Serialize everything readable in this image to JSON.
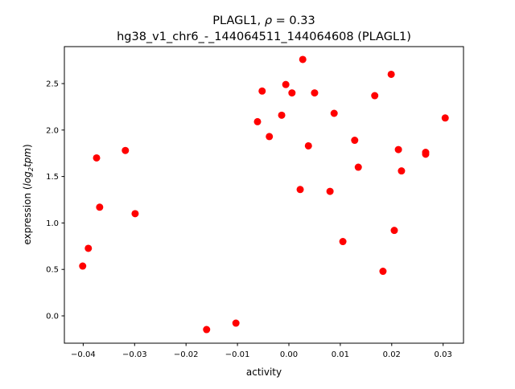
{
  "chart_data": {
    "type": "scatter",
    "title_line1_prefix": "PLAGL1, ",
    "title_line1_symbol": "ρ",
    "title_line1_suffix": " = 0.33",
    "title_line2": "hg38_v1_chr6_-_144064511_144064608 (PLAGL1)",
    "xlabel": "activity",
    "ylabel_prefix": "expression (",
    "ylabel_math": "log",
    "ylabel_sub": "2",
    "ylabel_math2": "tpm",
    "ylabel_suffix": ")",
    "xlim": [
      -0.04366,
      0.03396
    ],
    "ylim": [
      -0.294,
      2.898
    ],
    "xticks": [
      -0.04,
      -0.03,
      -0.02,
      -0.01,
      0.0,
      0.01,
      0.02,
      0.03
    ],
    "xtick_labels": [
      "−0.04",
      "−0.03",
      "−0.02",
      "−0.01",
      "0.00",
      "0.01",
      "0.02",
      "0.03"
    ],
    "yticks": [
      0.0,
      0.5,
      1.0,
      1.5,
      2.0,
      2.5
    ],
    "ytick_labels": [
      "0.0",
      "0.5",
      "1.0",
      "1.5",
      "2.0",
      "2.5"
    ],
    "grid": false,
    "marker_color": "#ff0000",
    "points": [
      [
        -0.0401,
        0.536
      ],
      [
        -0.039,
        0.727
      ],
      [
        -0.0374,
        1.7
      ],
      [
        -0.0368,
        1.17
      ],
      [
        -0.0318,
        1.78
      ],
      [
        -0.0299,
        1.1
      ],
      [
        -0.016,
        -0.147
      ],
      [
        -0.0103,
        -0.078
      ],
      [
        -0.0061,
        2.09
      ],
      [
        -0.0052,
        2.42
      ],
      [
        -0.0038,
        1.93
      ],
      [
        -0.0014,
        2.16
      ],
      [
        -0.0006,
        2.49
      ],
      [
        0.0006,
        2.4
      ],
      [
        0.0022,
        1.36
      ],
      [
        0.0027,
        2.76
      ],
      [
        0.0038,
        1.83
      ],
      [
        0.005,
        2.4
      ],
      [
        0.008,
        1.34
      ],
      [
        0.0088,
        2.18
      ],
      [
        0.0105,
        0.8
      ],
      [
        0.0128,
        1.89
      ],
      [
        0.0135,
        1.6
      ],
      [
        0.0167,
        2.37
      ],
      [
        0.0183,
        0.48
      ],
      [
        0.0199,
        2.6
      ],
      [
        0.0205,
        0.92
      ],
      [
        0.0213,
        1.79
      ],
      [
        0.0219,
        1.56
      ],
      [
        0.0266,
        1.76
      ],
      [
        0.0266,
        1.74
      ],
      [
        0.0304,
        2.13
      ]
    ]
  }
}
